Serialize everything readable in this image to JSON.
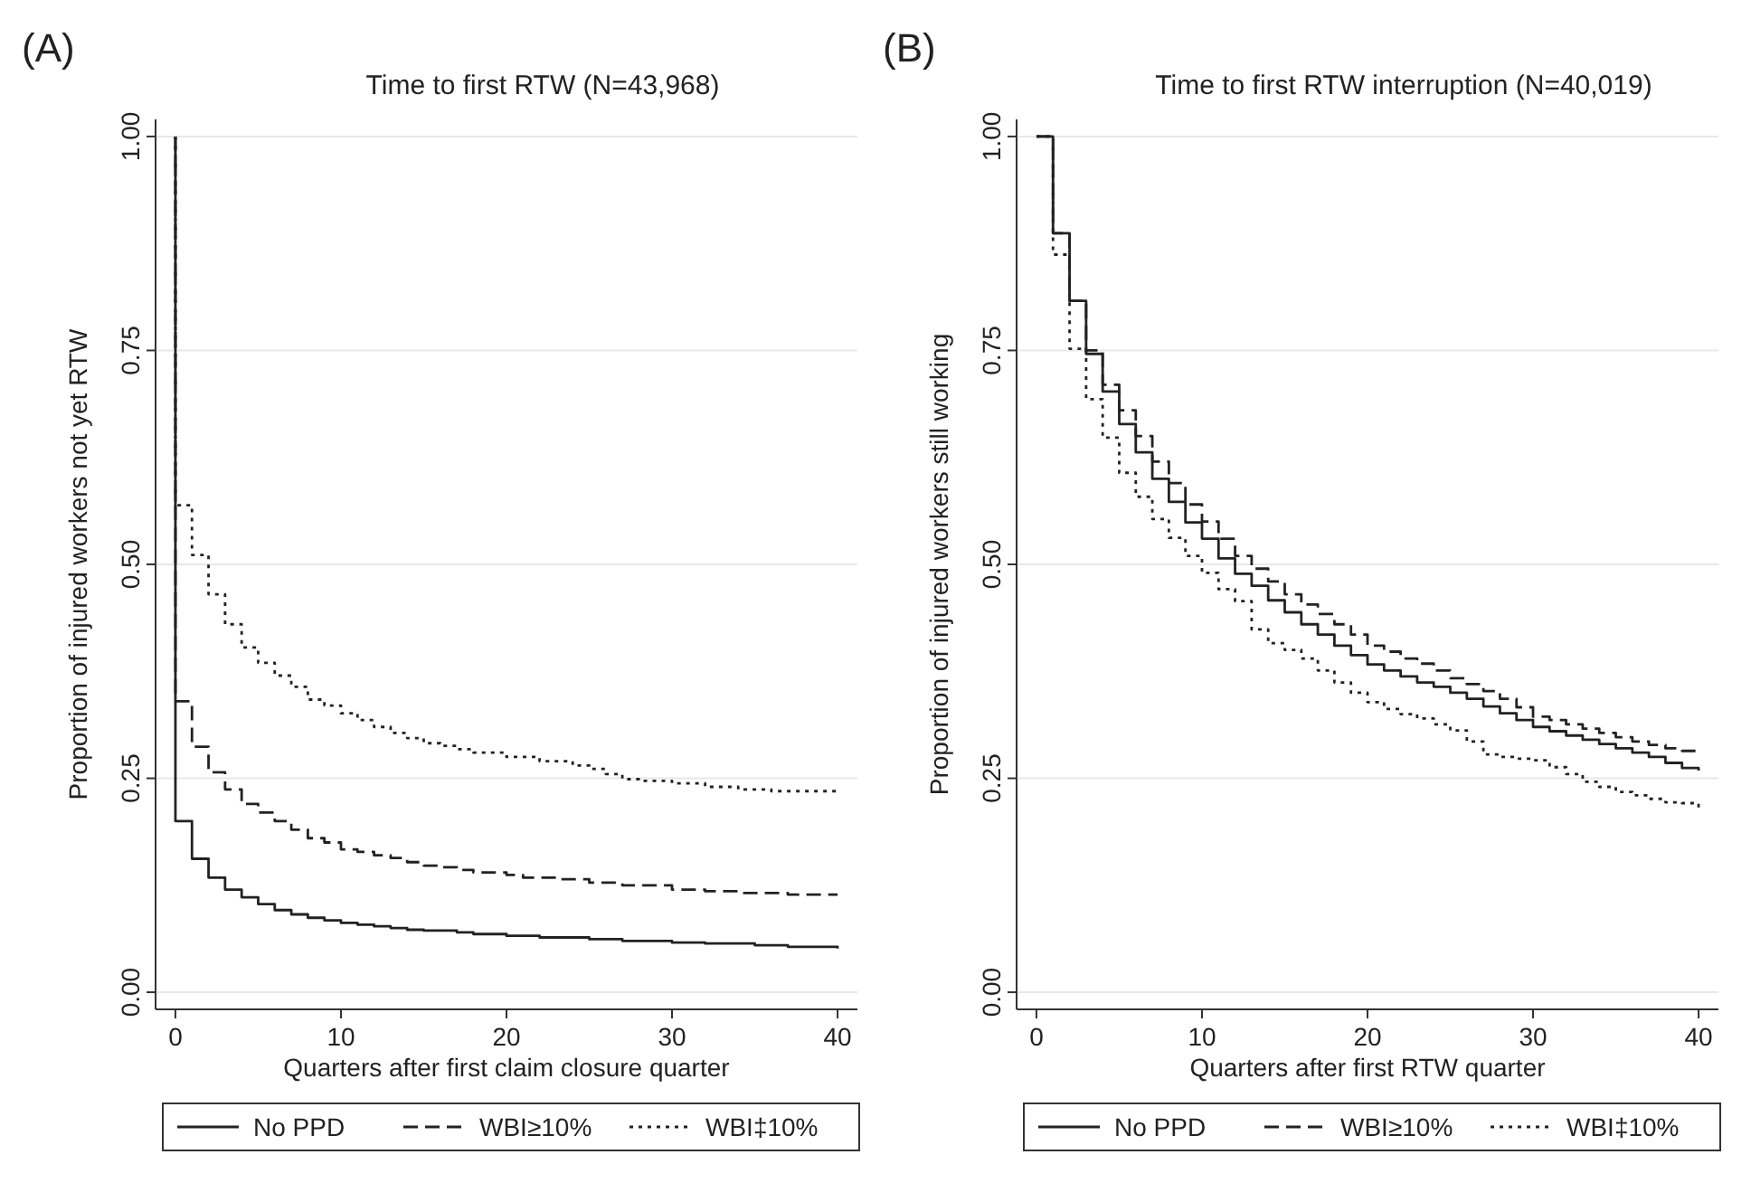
{
  "chart_data": [
    {
      "type": "step",
      "title": "Time to first RTW (N=43,968)",
      "xlabel": "Quarters after first claim closure quarter",
      "ylabel": "Proportion of injured workers not yet RTW",
      "annotations": [
        "(A)"
      ],
      "xlim": [
        -1.2,
        41.2
      ],
      "xticks": [
        0,
        10,
        20,
        30,
        40
      ],
      "ylim": [
        -0.02,
        1.02
      ],
      "yticks": [
        {
          "value": 0,
          "label": "0.00"
        },
        {
          "value": 0.25,
          "label": "0.25"
        },
        {
          "value": 0.5,
          "label": "0.50"
        },
        {
          "value": 0.75,
          "label": "0.75"
        },
        {
          "value": 1,
          "label": "1.00"
        }
      ],
      "grid": "y",
      "legend": "bottom",
      "series": [
        {
          "name": "No PPD",
          "color": "#222222",
          "line_style": "solid",
          "x": [
            0,
            0,
            1,
            2,
            3,
            4,
            5,
            6,
            7,
            8,
            9,
            10,
            11,
            12,
            13,
            14,
            15,
            17,
            18,
            20,
            22,
            25,
            27,
            30,
            32,
            35,
            37,
            40
          ],
          "values": [
            1,
            0.2,
            0.156,
            0.134,
            0.12,
            0.111,
            0.103,
            0.096,
            0.091,
            0.087,
            0.084,
            0.081,
            0.079,
            0.077,
            0.075,
            0.073,
            0.072,
            0.07,
            0.068,
            0.066,
            0.064,
            0.062,
            0.06,
            0.058,
            0.057,
            0.055,
            0.053,
            0.051
          ]
        },
        {
          "name": "WBI≥10%",
          "color": "#222222",
          "line_style": "dashed",
          "x": [
            0,
            0,
            1,
            2,
            3,
            4,
            5,
            6,
            7,
            8,
            9,
            10,
            11,
            12,
            13,
            14,
            15,
            16,
            17,
            18,
            20,
            21,
            23,
            25,
            27,
            30,
            32,
            34,
            37,
            40
          ],
          "values": [
            1,
            0.34,
            0.287,
            0.257,
            0.237,
            0.22,
            0.21,
            0.2,
            0.19,
            0.18,
            0.175,
            0.167,
            0.164,
            0.16,
            0.157,
            0.152,
            0.148,
            0.146,
            0.143,
            0.14,
            0.137,
            0.134,
            0.132,
            0.128,
            0.125,
            0.12,
            0.118,
            0.116,
            0.114,
            0.114
          ]
        },
        {
          "name": "WBI‡10%",
          "color": "#222222",
          "line_style": "dotted",
          "x": [
            0,
            0,
            1,
            2,
            3,
            4,
            5,
            6,
            7,
            8,
            9,
            10,
            11,
            12,
            13,
            14,
            15,
            16,
            17,
            18,
            20,
            22,
            24,
            25,
            26,
            27,
            28,
            30,
            32,
            34,
            36,
            40
          ],
          "values": [
            1,
            0.569,
            0.511,
            0.465,
            0.43,
            0.403,
            0.385,
            0.37,
            0.357,
            0.342,
            0.335,
            0.326,
            0.318,
            0.31,
            0.303,
            0.297,
            0.291,
            0.288,
            0.284,
            0.28,
            0.275,
            0.27,
            0.265,
            0.261,
            0.255,
            0.249,
            0.247,
            0.244,
            0.24,
            0.237,
            0.235,
            0.235
          ]
        }
      ]
    },
    {
      "type": "step",
      "title": "Time to first RTW interruption (N=40,019)",
      "xlabel": "Quarters after first RTW quarter",
      "ylabel": "Proportion of injured workers still working",
      "annotations": [
        "(B)"
      ],
      "xlim": [
        -1.2,
        41.2
      ],
      "xticks": [
        0,
        10,
        20,
        30,
        40
      ],
      "ylim": [
        -0.02,
        1.02
      ],
      "yticks": [
        {
          "value": 0,
          "label": "0.00"
        },
        {
          "value": 0.25,
          "label": "0.25"
        },
        {
          "value": 0.5,
          "label": "0.50"
        },
        {
          "value": 0.75,
          "label": "0.75"
        },
        {
          "value": 1,
          "label": "1.00"
        }
      ],
      "grid": "y",
      "legend": "bottom",
      "series": [
        {
          "name": "No PPD",
          "color": "#222222",
          "line_style": "solid",
          "x": [
            0,
            1,
            2,
            3,
            4,
            5,
            6,
            7,
            8,
            9,
            10,
            11,
            12,
            13,
            14,
            15,
            16,
            17,
            18,
            19,
            20,
            21,
            22,
            23,
            24,
            25,
            26,
            27,
            28,
            29,
            30,
            31,
            32,
            33,
            34,
            35,
            36,
            37,
            38,
            39,
            40
          ],
          "values": [
            1,
            0.887,
            0.808,
            0.746,
            0.702,
            0.664,
            0.631,
            0.6,
            0.573,
            0.549,
            0.53,
            0.507,
            0.489,
            0.475,
            0.458,
            0.444,
            0.43,
            0.418,
            0.405,
            0.394,
            0.383,
            0.376,
            0.369,
            0.362,
            0.357,
            0.35,
            0.343,
            0.334,
            0.326,
            0.318,
            0.31,
            0.305,
            0.3,
            0.295,
            0.29,
            0.285,
            0.28,
            0.275,
            0.268,
            0.262,
            0.259
          ]
        },
        {
          "name": "WBI≥10%",
          "color": "#222222",
          "line_style": "dashed",
          "x": [
            0,
            1,
            2,
            3,
            4,
            5,
            6,
            7,
            8,
            9,
            10,
            11,
            12,
            13,
            14,
            15,
            16,
            17,
            18,
            19,
            20,
            21,
            22,
            23,
            24,
            25,
            26,
            27,
            28,
            29,
            30,
            31,
            32,
            33,
            34,
            35,
            36,
            37,
            38,
            39,
            40
          ],
          "values": [
            1,
            0.887,
            0.808,
            0.75,
            0.71,
            0.68,
            0.65,
            0.62,
            0.595,
            0.57,
            0.55,
            0.53,
            0.51,
            0.495,
            0.48,
            0.465,
            0.453,
            0.442,
            0.43,
            0.418,
            0.405,
            0.398,
            0.39,
            0.384,
            0.376,
            0.367,
            0.36,
            0.352,
            0.343,
            0.333,
            0.322,
            0.318,
            0.313,
            0.308,
            0.303,
            0.298,
            0.293,
            0.289,
            0.285,
            0.282,
            0.281
          ]
        },
        {
          "name": "WBI‡10%",
          "color": "#222222",
          "line_style": "dotted",
          "x": [
            0,
            1,
            2,
            3,
            4,
            5,
            6,
            7,
            8,
            9,
            10,
            11,
            12,
            13,
            14,
            15,
            16,
            17,
            18,
            19,
            20,
            21,
            22,
            23,
            24,
            25,
            26,
            27,
            28,
            29,
            30,
            31,
            32,
            33,
            34,
            35,
            36,
            37,
            38,
            39,
            40
          ],
          "values": [
            1,
            0.862,
            0.752,
            0.693,
            0.648,
            0.607,
            0.579,
            0.553,
            0.531,
            0.51,
            0.49,
            0.471,
            0.457,
            0.424,
            0.408,
            0.4,
            0.39,
            0.376,
            0.362,
            0.35,
            0.339,
            0.331,
            0.325,
            0.32,
            0.313,
            0.306,
            0.293,
            0.278,
            0.275,
            0.273,
            0.271,
            0.263,
            0.255,
            0.246,
            0.24,
            0.234,
            0.23,
            0.226,
            0.222,
            0.221,
            0.21
          ]
        }
      ]
    }
  ]
}
